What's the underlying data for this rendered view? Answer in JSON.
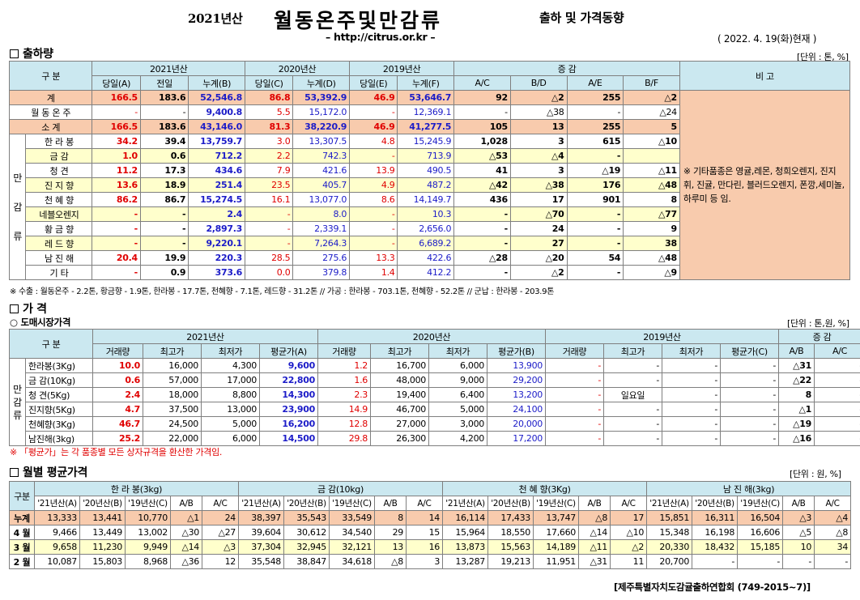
{
  "header": {
    "year": "2021년산",
    "title": "월동온주및만감류",
    "sub": "출하 및 가격동향",
    "url": "– http://citrus.or.kr –",
    "date": "( 2022. 4. 19(화)현재 )"
  },
  "s1": {
    "title": "출하량",
    "unit": "[단위 : 톤, %]",
    "h": {
      "gubun": "구  분",
      "y2021": "2021년산",
      "y2020": "2020년산",
      "y2019": "2019년산",
      "inc": "증  감",
      "bigo": "비 고",
      "c": [
        "당일(A)",
        "전일",
        "누계(B)",
        "당일(C)",
        "누계(D)",
        "당일(E)",
        "누계(F)",
        "A/C",
        "B/D",
        "A/E",
        "B/F"
      ]
    },
    "rows": [
      {
        "n": "계",
        "v": [
          "166.5",
          "183.6",
          "52,546.8",
          "86.8",
          "53,392.9",
          "46.9",
          "53,646.7",
          "92",
          "△2",
          "255",
          "△2"
        ]
      },
      {
        "n": "월 동 온 주",
        "v": [
          "-",
          "-",
          "9,400.8",
          "5.5",
          "15,172.0",
          "-",
          "12,369.1",
          "-",
          "△38",
          "-",
          "△24"
        ]
      },
      {
        "n": "소  계",
        "v": [
          "166.5",
          "183.6",
          "43,146.0",
          "81.3",
          "38,220.9",
          "46.9",
          "41,277.5",
          "105",
          "13",
          "255",
          "5"
        ]
      },
      {
        "n": "한 라 봉",
        "v": [
          "34.2",
          "39.4",
          "13,759.7",
          "3.0",
          "13,307.5",
          "4.8",
          "15,245.9",
          "1,028",
          "3",
          "615",
          "△10"
        ]
      },
      {
        "n": "금  감",
        "v": [
          "1.0",
          "0.6",
          "712.2",
          "2.2",
          "742.3",
          "-",
          "713.9",
          "△53",
          "△4",
          "-",
          ""
        ]
      },
      {
        "n": "청  견",
        "v": [
          "11.2",
          "17.3",
          "434.6",
          "7.9",
          "421.6",
          "13.9",
          "490.5",
          "41",
          "3",
          "△19",
          "△11"
        ]
      },
      {
        "n": "진 지 향",
        "v": [
          "13.6",
          "18.9",
          "251.4",
          "23.5",
          "405.7",
          "4.9",
          "487.2",
          "△42",
          "△38",
          "176",
          "△48"
        ]
      },
      {
        "n": "천 혜 향",
        "v": [
          "86.2",
          "86.7",
          "15,274.5",
          "16.1",
          "13,077.0",
          "8.6",
          "14,149.7",
          "436",
          "17",
          "901",
          "8"
        ]
      },
      {
        "n": "네블오렌지",
        "v": [
          "-",
          "-",
          "2.4",
          "-",
          "8.0",
          "-",
          "10.3",
          "-",
          "△70",
          "-",
          "△77"
        ]
      },
      {
        "n": "황 금 향",
        "v": [
          "-",
          "-",
          "2,897.3",
          "-",
          "2,339.1",
          "-",
          "2,656.0",
          "-",
          "24",
          "-",
          "9"
        ]
      },
      {
        "n": "레 드 향",
        "v": [
          "-",
          "-",
          "9,220.1",
          "-",
          "7,264.3",
          "-",
          "6,689.2",
          "-",
          "27",
          "-",
          "38"
        ]
      },
      {
        "n": "남 진 해",
        "v": [
          "20.4",
          "19.9",
          "220.3",
          "28.5",
          "275.6",
          "13.3",
          "422.6",
          "△28",
          "△20",
          "54",
          "△48"
        ]
      },
      {
        "n": "기  타",
        "v": [
          "-",
          "0.9",
          "373.6",
          "0.0",
          "379.8",
          "1.4",
          "412.2",
          "-",
          "△2",
          "-",
          "△9"
        ]
      }
    ],
    "mangam": [
      "만",
      "감",
      "류"
    ],
    "remark": "※ 기타품종은 영귤,레몬, 청희오렌지, 진지휘, 진귤, 만다린, 블러드오렌지, 폰깡,세미놀, 하루미 등 임.",
    "note": "※ 수출 : 월동온주 - 2.2톤, 황금향 - 1.9톤, 한라봉 - 17.7톤, 천혜향 - 7.1톤, 레드향 - 31.2톤 // 가공 : 한라봉 - 703.1톤, 천혜향 - 52.2톤 // 군납 : 한라봉 - 203.9톤"
  },
  "s2": {
    "title": "가  격",
    "unit": "[단위 : 톤,원, %]",
    "sub": "○ 도매시장가격",
    "h": {
      "gubun": "구  분",
      "y2021": "2021년산",
      "y2020": "2020년산",
      "y2019": "2019년산",
      "inc": "증  감",
      "c": [
        "거래량",
        "최고가",
        "최저가",
        "평균가(A)",
        "거래량",
        "최고가",
        "최저가",
        "평균가(B)",
        "거래량",
        "최고가",
        "최저가",
        "평균가(C)",
        "A/B",
        "A/C"
      ]
    },
    "mangam": [
      "만",
      "감",
      "류"
    ],
    "rows": [
      {
        "n": "한라봉(3Kg)",
        "v": [
          "10.0",
          "16,000",
          "4,300",
          "9,600",
          "1.2",
          "16,700",
          "6,000",
          "13,900",
          "-",
          "-",
          "-",
          "-",
          "△31",
          "-"
        ]
      },
      {
        "n": "금 감(10Kg)",
        "v": [
          "0.6",
          "57,000",
          "17,000",
          "22,800",
          "1.6",
          "48,000",
          "9,000",
          "29,200",
          "-",
          "-",
          "-",
          "-",
          "△22",
          "-"
        ]
      },
      {
        "n": "청  견(5Kg)",
        "v": [
          "2.4",
          "18,000",
          "8,800",
          "14,300",
          "2.3",
          "19,400",
          "6,400",
          "13,200",
          "-",
          "일요일",
          "-",
          "-",
          "8",
          "-"
        ]
      },
      {
        "n": "진지향(5Kg)",
        "v": [
          "4.7",
          "37,500",
          "13,000",
          "23,900",
          "14.9",
          "46,700",
          "5,000",
          "24,100",
          "-",
          "-",
          "-",
          "-",
          "△1",
          "-"
        ]
      },
      {
        "n": "천혜향(3Kg)",
        "v": [
          "46.7",
          "24,500",
          "5,000",
          "16,200",
          "12.8",
          "27,000",
          "3,000",
          "20,000",
          "-",
          "-",
          "-",
          "-",
          "△19",
          "-"
        ]
      },
      {
        "n": "남진해(3kg)",
        "v": [
          "25.2",
          "22,000",
          "6,000",
          "14,500",
          "29.8",
          "26,300",
          "4,200",
          "17,200",
          "-",
          "-",
          "-",
          "-",
          "△16",
          "-"
        ]
      }
    ],
    "note": "※ 「평균가」는 각 품종별 모든 상자규격을 환산한 가격임."
  },
  "s3": {
    "title": "월별 평균가격",
    "unit": "[단위 : 원, %]",
    "h": {
      "gubun": "구분",
      "g": [
        "한 라 봉(3kg)",
        "금  감(10kg)",
        "천 혜 향(3Kg)",
        "남 진 해(3kg)"
      ],
      "c": [
        "'21년산(A)",
        "'20년산(B)",
        "'19년산(C)",
        "A/B",
        "A/C"
      ]
    },
    "rows": [
      {
        "n": "누계",
        "v": [
          "13,333",
          "13,441",
          "10,770",
          "△1",
          "24",
          "38,397",
          "35,543",
          "33,549",
          "8",
          "14",
          "16,114",
          "17,433",
          "13,747",
          "△8",
          "17",
          "15,851",
          "16,311",
          "16,504",
          "△3",
          "△4"
        ]
      },
      {
        "n": "4 월",
        "v": [
          "9,466",
          "13,449",
          "13,002",
          "△30",
          "△27",
          "39,604",
          "30,612",
          "34,540",
          "29",
          "15",
          "15,964",
          "18,550",
          "17,660",
          "△14",
          "△10",
          "15,348",
          "16,198",
          "16,606",
          "△5",
          "△8"
        ]
      },
      {
        "n": "3 월",
        "v": [
          "9,658",
          "11,230",
          "9,949",
          "△14",
          "△3",
          "37,304",
          "32,945",
          "32,121",
          "13",
          "16",
          "13,873",
          "15,563",
          "14,189",
          "△11",
          "△2",
          "20,330",
          "18,432",
          "15,185",
          "10",
          "34"
        ]
      },
      {
        "n": "2 월",
        "v": [
          "10,087",
          "15,803",
          "8,968",
          "△36",
          "12",
          "35,548",
          "38,847",
          "34,618",
          "△8",
          "3",
          "13,287",
          "19,213",
          "11,951",
          "△31",
          "11",
          "20,700",
          "-",
          "-",
          "-",
          "-"
        ]
      }
    ]
  },
  "footer": "[제주특별자치도감귤출하연합회 (749-2015~7)]"
}
